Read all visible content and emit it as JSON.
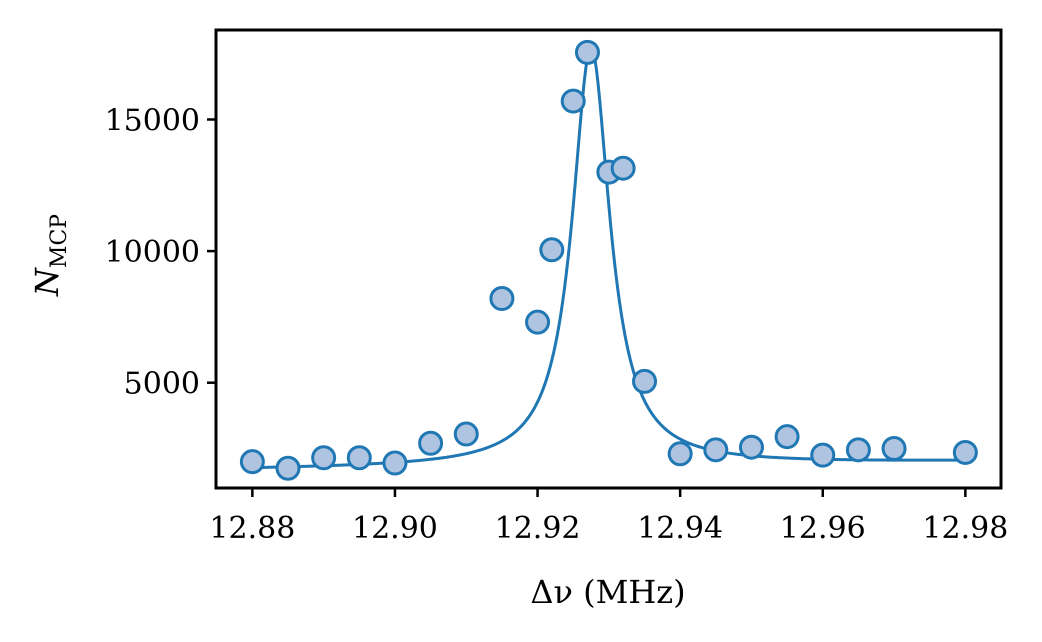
{
  "chart_data": {
    "type": "scatter",
    "xlabel": "Δν (MHz)",
    "ylabel_main": "N",
    "ylabel_sub": "MCP",
    "xlim": [
      12.8749,
      12.985
    ],
    "ylim": [
      1000,
      18400
    ],
    "x_ticks": [
      12.88,
      12.9,
      12.92,
      12.94,
      12.96,
      12.98
    ],
    "x_tick_labels": [
      "12.88",
      "12.90",
      "12.92",
      "12.94",
      "12.96",
      "12.98"
    ],
    "y_ticks": [
      5000,
      10000,
      15000
    ],
    "y_tick_labels": [
      "5000",
      "10000",
      "15000"
    ],
    "series": [
      {
        "kind": "points",
        "marker_fill": "#aec4e0",
        "marker_edge": "#1f77b4",
        "x": [
          12.88,
          12.885,
          12.89,
          12.895,
          12.9,
          12.905,
          12.91,
          12.915,
          12.92,
          12.922,
          12.925,
          12.927,
          12.93,
          12.932,
          12.935,
          12.94,
          12.945,
          12.95,
          12.955,
          12.96,
          12.965,
          12.97,
          12.98
        ],
        "y": [
          2000,
          1750,
          2150,
          2150,
          1950,
          2700,
          3050,
          8200,
          7300,
          10050,
          15700,
          17550,
          13000,
          13150,
          5050,
          2300,
          2450,
          2550,
          2950,
          2250,
          2450,
          2500,
          2350
        ]
      },
      {
        "kind": "fit",
        "color": "#1f77b4",
        "model": "lorentzian",
        "x0": 12.9275,
        "gamma": 0.0032,
        "amplitude": 15900,
        "offset": 1700,
        "slope_per_mhz": 3000
      }
    ],
    "grid": false,
    "legend": false
  }
}
